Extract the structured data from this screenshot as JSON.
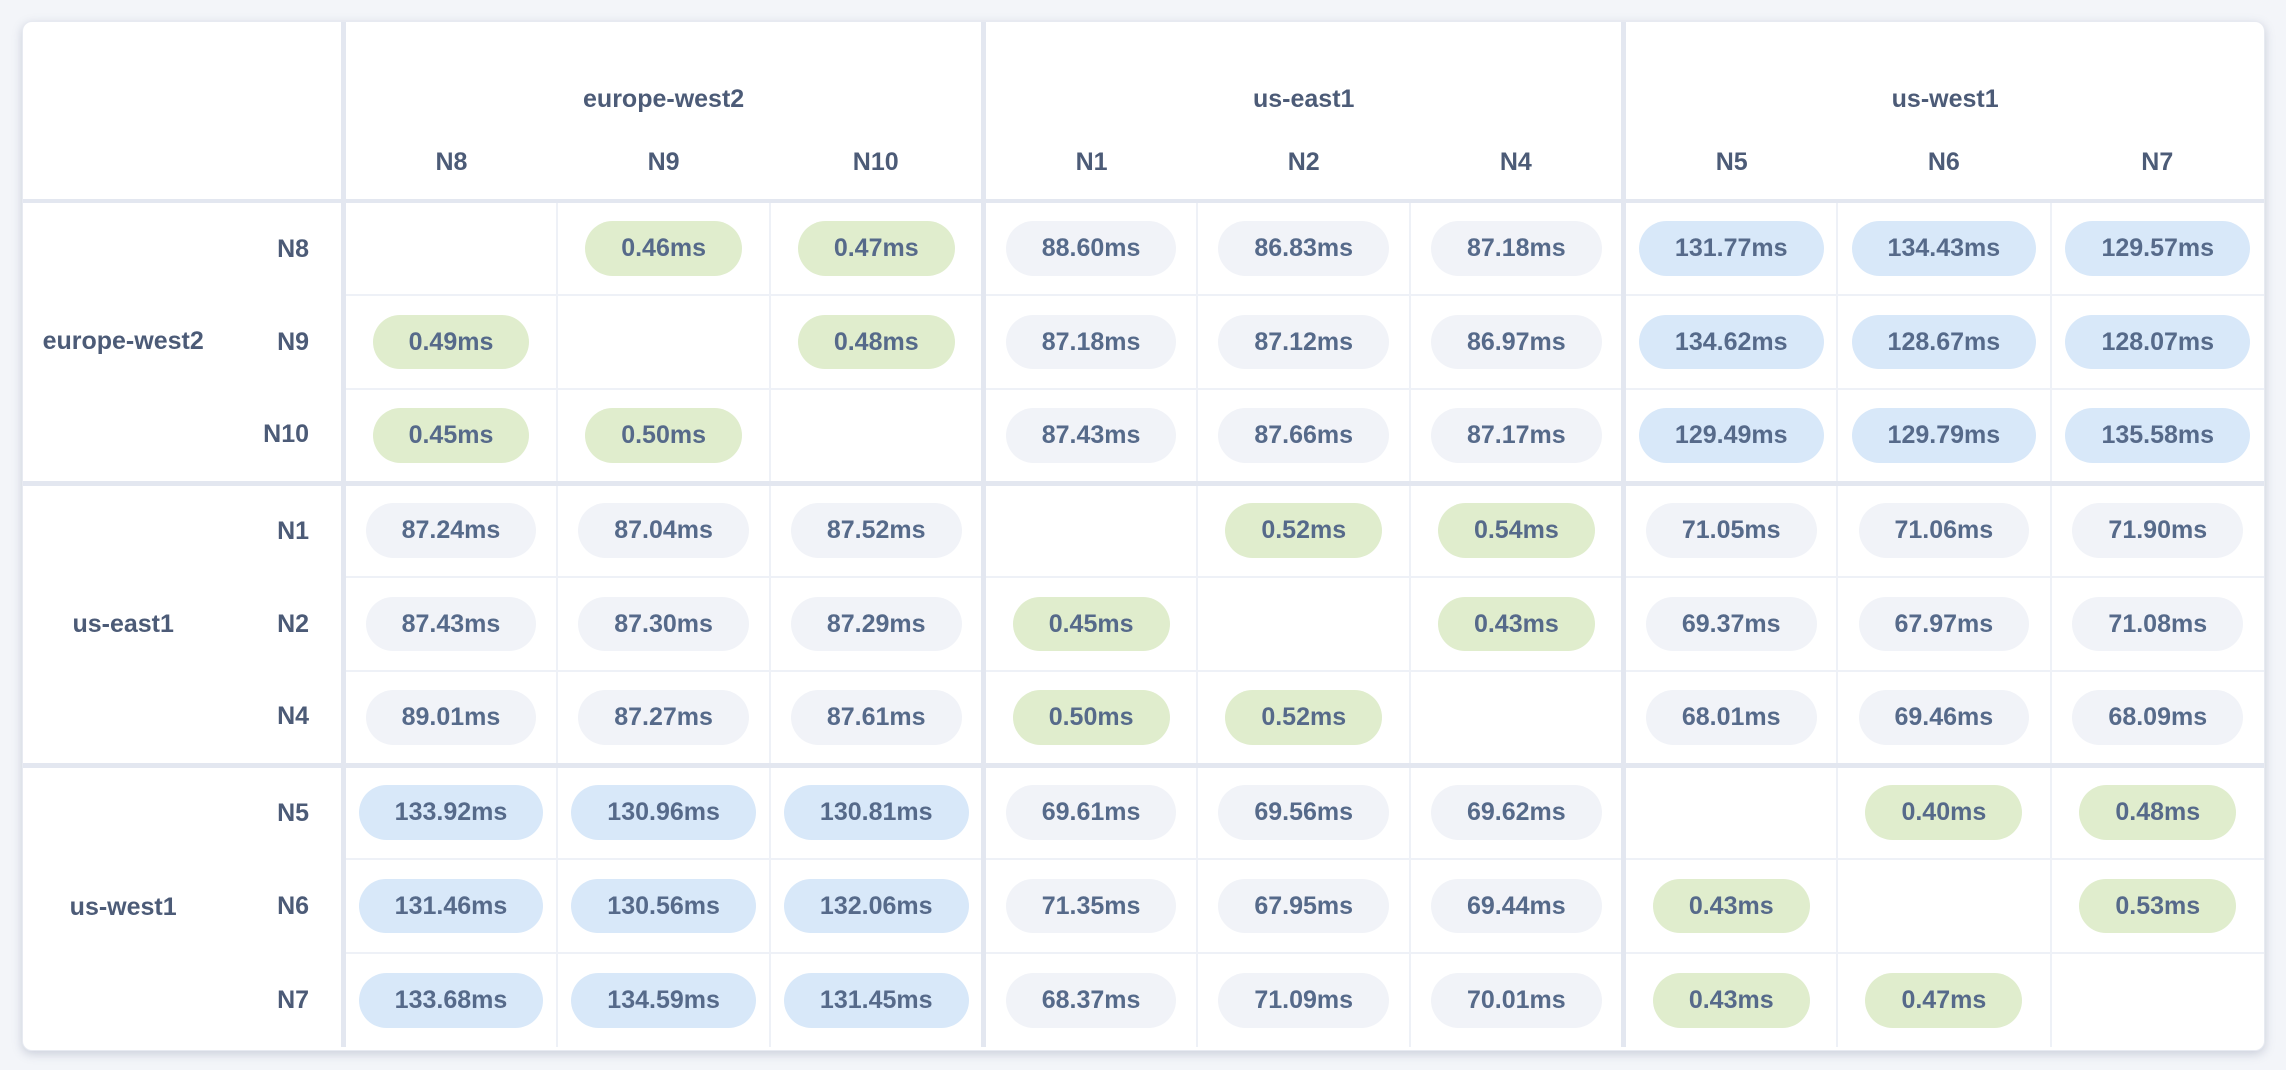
{
  "colors": {
    "page_background": "#f3f5f9",
    "card_background": "#ffffff",
    "pill_green": "#e0edcd",
    "pill_gray": "#f1f3f8",
    "pill_blue": "#d8e8f9",
    "pill_text": "#566a8a",
    "header_text": "#4c5b77",
    "grid_line": "#eef1f7",
    "group_line": "#e3e7f0"
  },
  "m": {
    "col_groups": [
      {
        "region": "europe-west2",
        "nodes": [
          "N8",
          "N9",
          "N10"
        ]
      },
      {
        "region": "us-east1",
        "nodes": [
          "N1",
          "N2",
          "N4"
        ]
      },
      {
        "region": "us-west1",
        "nodes": [
          "N5",
          "N6",
          "N7"
        ]
      }
    ],
    "row_groups": [
      {
        "region": "europe-west2",
        "rows": [
          {
            "node": "N8",
            "cells": [
              null,
              {
                "v": "0.46ms",
                "cls": "pill green"
              },
              {
                "v": "0.47ms",
                "cls": "pill green"
              },
              {
                "v": "88.60ms",
                "cls": "pill gray"
              },
              {
                "v": "86.83ms",
                "cls": "pill gray"
              },
              {
                "v": "87.18ms",
                "cls": "pill gray"
              },
              {
                "v": "131.77ms",
                "cls": "pill blue"
              },
              {
                "v": "134.43ms",
                "cls": "pill blue"
              },
              {
                "v": "129.57ms",
                "cls": "pill blue"
              }
            ]
          },
          {
            "node": "N9",
            "cells": [
              {
                "v": "0.49ms",
                "cls": "pill green"
              },
              null,
              {
                "v": "0.48ms",
                "cls": "pill green"
              },
              {
                "v": "87.18ms",
                "cls": "pill gray"
              },
              {
                "v": "87.12ms",
                "cls": "pill gray"
              },
              {
                "v": "86.97ms",
                "cls": "pill gray"
              },
              {
                "v": "134.62ms",
                "cls": "pill blue"
              },
              {
                "v": "128.67ms",
                "cls": "pill blue"
              },
              {
                "v": "128.07ms",
                "cls": "pill blue"
              }
            ]
          },
          {
            "node": "N10",
            "cells": [
              {
                "v": "0.45ms",
                "cls": "pill green"
              },
              {
                "v": "0.50ms",
                "cls": "pill green"
              },
              null,
              {
                "v": "87.43ms",
                "cls": "pill gray"
              },
              {
                "v": "87.66ms",
                "cls": "pill gray"
              },
              {
                "v": "87.17ms",
                "cls": "pill gray"
              },
              {
                "v": "129.49ms",
                "cls": "pill blue"
              },
              {
                "v": "129.79ms",
                "cls": "pill blue"
              },
              {
                "v": "135.58ms",
                "cls": "pill blue"
              }
            ]
          }
        ]
      },
      {
        "region": "us-east1",
        "rows": [
          {
            "node": "N1",
            "cells": [
              {
                "v": "87.24ms",
                "cls": "pill gray"
              },
              {
                "v": "87.04ms",
                "cls": "pill gray"
              },
              {
                "v": "87.52ms",
                "cls": "pill gray"
              },
              null,
              {
                "v": "0.52ms",
                "cls": "pill green"
              },
              {
                "v": "0.54ms",
                "cls": "pill green"
              },
              {
                "v": "71.05ms",
                "cls": "pill gray"
              },
              {
                "v": "71.06ms",
                "cls": "pill gray"
              },
              {
                "v": "71.90ms",
                "cls": "pill gray"
              }
            ]
          },
          {
            "node": "N2",
            "cells": [
              {
                "v": "87.43ms",
                "cls": "pill gray"
              },
              {
                "v": "87.30ms",
                "cls": "pill gray"
              },
              {
                "v": "87.29ms",
                "cls": "pill gray"
              },
              {
                "v": "0.45ms",
                "cls": "pill green"
              },
              null,
              {
                "v": "0.43ms",
                "cls": "pill green"
              },
              {
                "v": "69.37ms",
                "cls": "pill gray"
              },
              {
                "v": "67.97ms",
                "cls": "pill gray"
              },
              {
                "v": "71.08ms",
                "cls": "pill gray"
              }
            ]
          },
          {
            "node": "N4",
            "cells": [
              {
                "v": "89.01ms",
                "cls": "pill gray"
              },
              {
                "v": "87.27ms",
                "cls": "pill gray"
              },
              {
                "v": "87.61ms",
                "cls": "pill gray"
              },
              {
                "v": "0.50ms",
                "cls": "pill green"
              },
              {
                "v": "0.52ms",
                "cls": "pill green"
              },
              null,
              {
                "v": "68.01ms",
                "cls": "pill gray"
              },
              {
                "v": "69.46ms",
                "cls": "pill gray"
              },
              {
                "v": "68.09ms",
                "cls": "pill gray"
              }
            ]
          }
        ]
      },
      {
        "region": "us-west1",
        "rows": [
          {
            "node": "N5",
            "cells": [
              {
                "v": "133.92ms",
                "cls": "pill blue"
              },
              {
                "v": "130.96ms",
                "cls": "pill blue"
              },
              {
                "v": "130.81ms",
                "cls": "pill blue"
              },
              {
                "v": "69.61ms",
                "cls": "pill gray"
              },
              {
                "v": "69.56ms",
                "cls": "pill gray"
              },
              {
                "v": "69.62ms",
                "cls": "pill gray"
              },
              null,
              {
                "v": "0.40ms",
                "cls": "pill green"
              },
              {
                "v": "0.48ms",
                "cls": "pill green"
              }
            ]
          },
          {
            "node": "N6",
            "cells": [
              {
                "v": "131.46ms",
                "cls": "pill blue"
              },
              {
                "v": "130.56ms",
                "cls": "pill blue"
              },
              {
                "v": "132.06ms",
                "cls": "pill blue"
              },
              {
                "v": "71.35ms",
                "cls": "pill gray"
              },
              {
                "v": "67.95ms",
                "cls": "pill gray"
              },
              {
                "v": "69.44ms",
                "cls": "pill gray"
              },
              {
                "v": "0.43ms",
                "cls": "pill green"
              },
              null,
              {
                "v": "0.53ms",
                "cls": "pill green"
              }
            ]
          },
          {
            "node": "N7",
            "cells": [
              {
                "v": "133.68ms",
                "cls": "pill blue"
              },
              {
                "v": "134.59ms",
                "cls": "pill blue"
              },
              {
                "v": "131.45ms",
                "cls": "pill blue"
              },
              {
                "v": "68.37ms",
                "cls": "pill gray"
              },
              {
                "v": "71.09ms",
                "cls": "pill gray"
              },
              {
                "v": "70.01ms",
                "cls": "pill gray"
              },
              {
                "v": "0.43ms",
                "cls": "pill green"
              },
              {
                "v": "0.47ms",
                "cls": "pill green"
              },
              null
            ]
          }
        ]
      }
    ]
  }
}
